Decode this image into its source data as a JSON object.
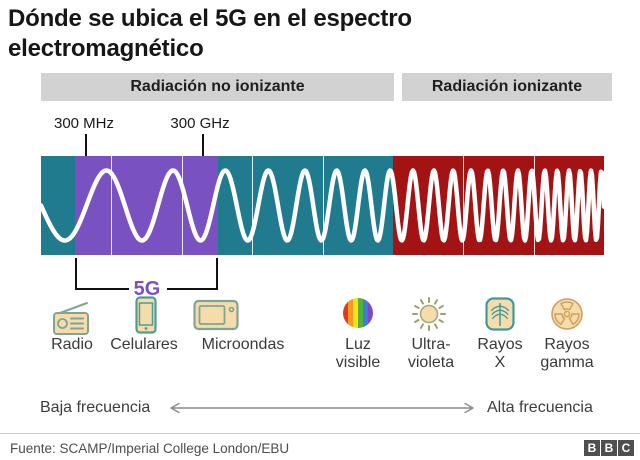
{
  "title": "Dónde se ubica el 5G en el espectro electromagnético",
  "header": {
    "non_ionizing_label": "Radiación no ionizante",
    "ionizing_label": "Radiación ionizante"
  },
  "spectrum": {
    "marker_low": "300 MHz",
    "marker_high": "300 GHz",
    "band_5g": "5G"
  },
  "icons": [
    {
      "name": "radio",
      "line1": "Radio",
      "line2": ""
    },
    {
      "name": "celulares",
      "line1": "Celulares",
      "line2": ""
    },
    {
      "name": "microondas",
      "line1": "Microondas",
      "line2": ""
    },
    {
      "name": "luz-visible",
      "line1": "Luz",
      "line2": "visible"
    },
    {
      "name": "ultravioleta",
      "line1": "Ultra-",
      "line2": "violeta"
    },
    {
      "name": "rayos-x",
      "line1": "Rayos",
      "line2": "X"
    },
    {
      "name": "rayos-gamma",
      "line1": "Rayos",
      "line2": "gamma"
    }
  ],
  "axis": {
    "low_label": "Baja frecuencia",
    "high_label": "Alta frecuencia"
  },
  "footer": {
    "source": "Fuente: SCAMP/Imperial College London/EBU",
    "logo_letters": [
      "B",
      "B",
      "C"
    ]
  },
  "colors": {
    "teal": "#1f7b8d",
    "purple": "#7a51c0",
    "dark_red": "#a31313",
    "header_bar": "#d2d2d2",
    "icon_fill": "#f7dcab",
    "icon_stroke": "#7fa596",
    "bracket_black": "#111111",
    "text_dark": "#161616",
    "text_gray": "#3a3a3a",
    "source_text": "#4d4d4d",
    "arrow_gray": "#8c8c8c",
    "bbc_block": "#4f4f4f"
  }
}
